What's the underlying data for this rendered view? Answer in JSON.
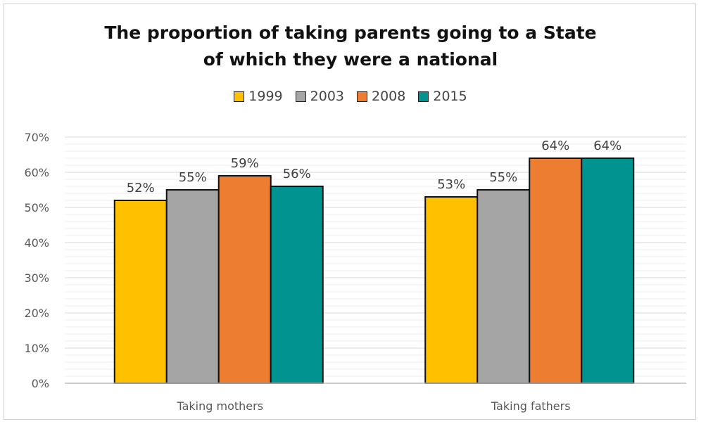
{
  "chart_data": {
    "type": "bar",
    "title_line1": "The proportion of taking parents going to a State",
    "title_line2": "of which they were a national",
    "categories": [
      "Taking mothers",
      "Taking fathers"
    ],
    "series": [
      {
        "name": "1999",
        "color": "#FFC000",
        "values": [
          52,
          53
        ]
      },
      {
        "name": "2003",
        "color": "#A5A5A5",
        "values": [
          55,
          55
        ]
      },
      {
        "name": "2008",
        "color": "#ED7D31",
        "values": [
          59,
          64
        ]
      },
      {
        "name": "2015",
        "color": "#00938F",
        "values": [
          56,
          64
        ]
      }
    ],
    "data_labels": [
      [
        "52%",
        "53%"
      ],
      [
        "55%",
        "55%"
      ],
      [
        "59%",
        "64%"
      ],
      [
        "56%",
        "64%"
      ]
    ],
    "ylim": [
      0,
      70
    ],
    "yticks": [
      "0%",
      "10%",
      "20%",
      "30%",
      "40%",
      "50%",
      "60%",
      "70%"
    ],
    "grid": true,
    "legend_position": "top"
  }
}
